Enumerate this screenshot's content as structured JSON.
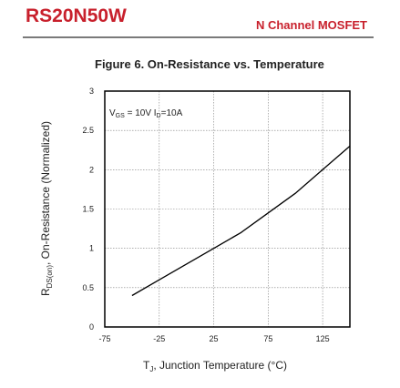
{
  "header": {
    "part_number": "RS20N50W",
    "part_type": "N Channel MOSFET"
  },
  "chart_data": {
    "type": "line",
    "title": "Figure 6. On-Resistance vs. Temperature",
    "xlabel": "T, Junction Temperature (°C)",
    "xlabel_main": "T",
    "xlabel_sub": "J",
    "xlabel_rest": ", Junction Temperature (",
    "xlabel_unit": "°C",
    "xlabel_close": ")",
    "ylabel": "R, On-Resistance (Normalized)",
    "ylabel_main": "R",
    "ylabel_sub": "DS(on)",
    "ylabel_rest": ", On-Resistance (Normalized)",
    "xlim": [
      -75,
      150
    ],
    "ylim": [
      0,
      3
    ],
    "x_ticks": [
      -75,
      -25,
      25,
      75,
      125
    ],
    "x_tick_labels": [
      "-75",
      "-25",
      "25",
      "75",
      "125"
    ],
    "y_ticks": [
      0,
      0.5,
      1,
      1.5,
      2,
      2.5,
      3
    ],
    "y_tick_labels": [
      "0",
      "0.5",
      "1",
      "1.5",
      "2",
      "2.5",
      "3"
    ],
    "grid": true,
    "annotation": {
      "vgs_main": "V",
      "vgs_sub": "GS",
      "vgs_rest": " = 10V I",
      "id_sub": "D",
      "id_rest": "=10A"
    },
    "series": [
      {
        "x": [
          -50,
          -25,
          0,
          25,
          50,
          75,
          100,
          125,
          150
        ],
        "y": [
          0.4,
          0.6,
          0.8,
          1.0,
          1.2,
          1.45,
          1.7,
          2.0,
          2.3
        ]
      }
    ]
  },
  "colors": {
    "brand": "#c8202c",
    "line": "#000000",
    "grid": "#7f7f7f"
  }
}
